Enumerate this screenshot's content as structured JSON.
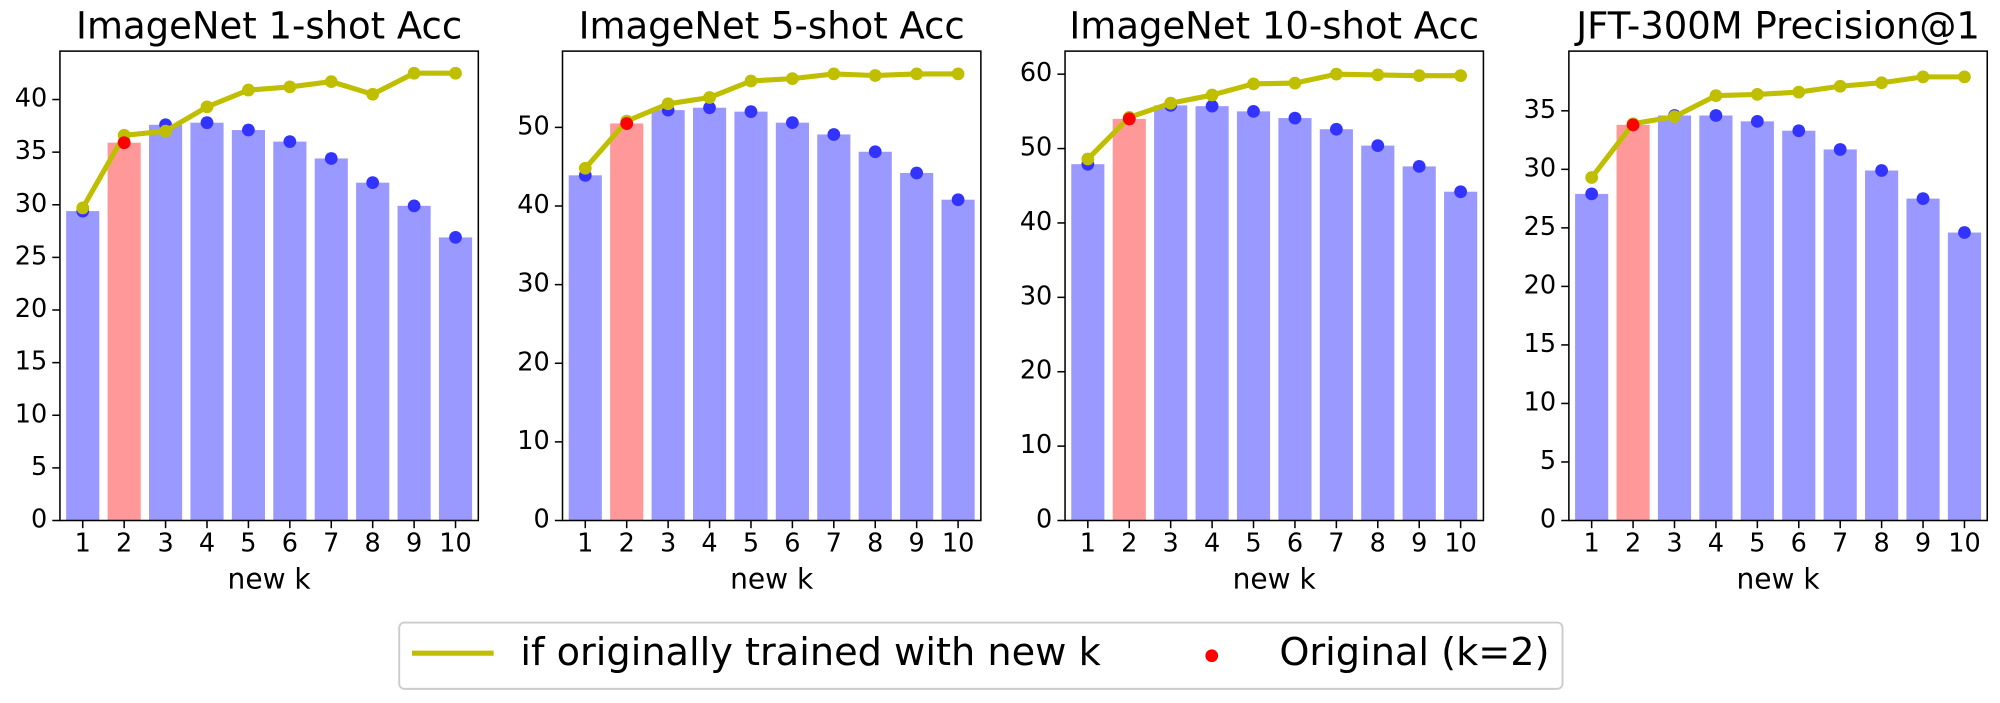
{
  "legend": [
    {
      "name": "if originally trained with new k",
      "color": "#bfbf00"
    },
    {
      "name": "Original (k=2)",
      "color": "#ff0000"
    }
  ],
  "chart_data": [
    {
      "type": "bar",
      "title": "ImageNet 1-shot Acc",
      "xlabel": "new k",
      "x": [
        1,
        2,
        3,
        4,
        5,
        6,
        7,
        8,
        9,
        10
      ],
      "xlim": [
        0.45,
        10.55
      ],
      "ylim": [
        0,
        44.6
      ],
      "yticks": [
        0,
        5,
        10,
        15,
        20,
        25,
        30,
        35,
        40
      ],
      "values": [
        29.4,
        35.9,
        37.6,
        37.8,
        37.1,
        36.0,
        34.4,
        32.1,
        29.9,
        26.9
      ],
      "color": "#9999ff",
      "marker_color": "#3333ff",
      "highlight_color": "#ff9999",
      "trained_values": [
        29.7,
        36.6,
        37.0,
        39.3,
        40.9,
        41.2,
        41.7,
        40.5,
        42.5,
        42.5
      ],
      "original_values": [
        null,
        35.9,
        null,
        null,
        null,
        null,
        null,
        null,
        null,
        null
      ]
    },
    {
      "type": "bar",
      "title": "ImageNet 5-shot Acc",
      "xlabel": "new k",
      "x": [
        1,
        2,
        3,
        4,
        5,
        6,
        7,
        8,
        9,
        10
      ],
      "xlim": [
        0.45,
        10.55
      ],
      "ylim": [
        0,
        59.7
      ],
      "yticks": [
        0,
        10,
        20,
        30,
        40,
        50
      ],
      "values": [
        43.9,
        50.5,
        52.2,
        52.5,
        52.0,
        50.6,
        49.1,
        46.9,
        44.2,
        40.8
      ],
      "color": "#9999ff",
      "marker_color": "#3333ff",
      "highlight_color": "#ff9999",
      "trained_values": [
        44.8,
        50.8,
        53.0,
        53.8,
        55.9,
        56.2,
        56.8,
        56.6,
        56.8,
        56.8
      ],
      "original_values": [
        null,
        50.5,
        null,
        null,
        null,
        null,
        null,
        null,
        null,
        null
      ]
    },
    {
      "type": "bar",
      "title": "ImageNet 10-shot Acc",
      "xlabel": "new k",
      "x": [
        1,
        2,
        3,
        4,
        5,
        6,
        7,
        8,
        9,
        10
      ],
      "xlim": [
        0.45,
        10.55
      ],
      "ylim": [
        0,
        63.1
      ],
      "yticks": [
        0,
        10,
        20,
        30,
        40,
        50,
        60
      ],
      "values": [
        47.9,
        54.0,
        55.8,
        55.7,
        55.0,
        54.1,
        52.6,
        50.4,
        47.6,
        44.2
      ],
      "color": "#9999ff",
      "marker_color": "#3333ff",
      "highlight_color": "#ff9999",
      "trained_values": [
        48.6,
        54.2,
        56.1,
        57.2,
        58.7,
        58.8,
        60.0,
        59.9,
        59.8,
        59.8
      ],
      "original_values": [
        null,
        54.0,
        null,
        null,
        null,
        null,
        null,
        null,
        null,
        null
      ]
    },
    {
      "type": "bar",
      "title": "JFT-300M Precision@1",
      "xlabel": "new k",
      "x": [
        1,
        2,
        3,
        4,
        5,
        6,
        7,
        8,
        9,
        10
      ],
      "xlim": [
        0.45,
        10.55
      ],
      "ylim": [
        0,
        40.1
      ],
      "yticks": [
        0,
        5,
        10,
        15,
        20,
        25,
        30,
        35
      ],
      "values": [
        27.9,
        33.8,
        34.6,
        34.6,
        34.1,
        33.3,
        31.7,
        29.9,
        27.5,
        24.6
      ],
      "color": "#9999ff",
      "marker_color": "#3333ff",
      "highlight_color": "#ff9999",
      "trained_values": [
        29.3,
        33.9,
        34.5,
        36.3,
        36.4,
        36.6,
        37.1,
        37.4,
        37.9,
        37.9
      ],
      "original_values": [
        null,
        33.8,
        null,
        null,
        null,
        null,
        null,
        null,
        null,
        null
      ]
    }
  ]
}
